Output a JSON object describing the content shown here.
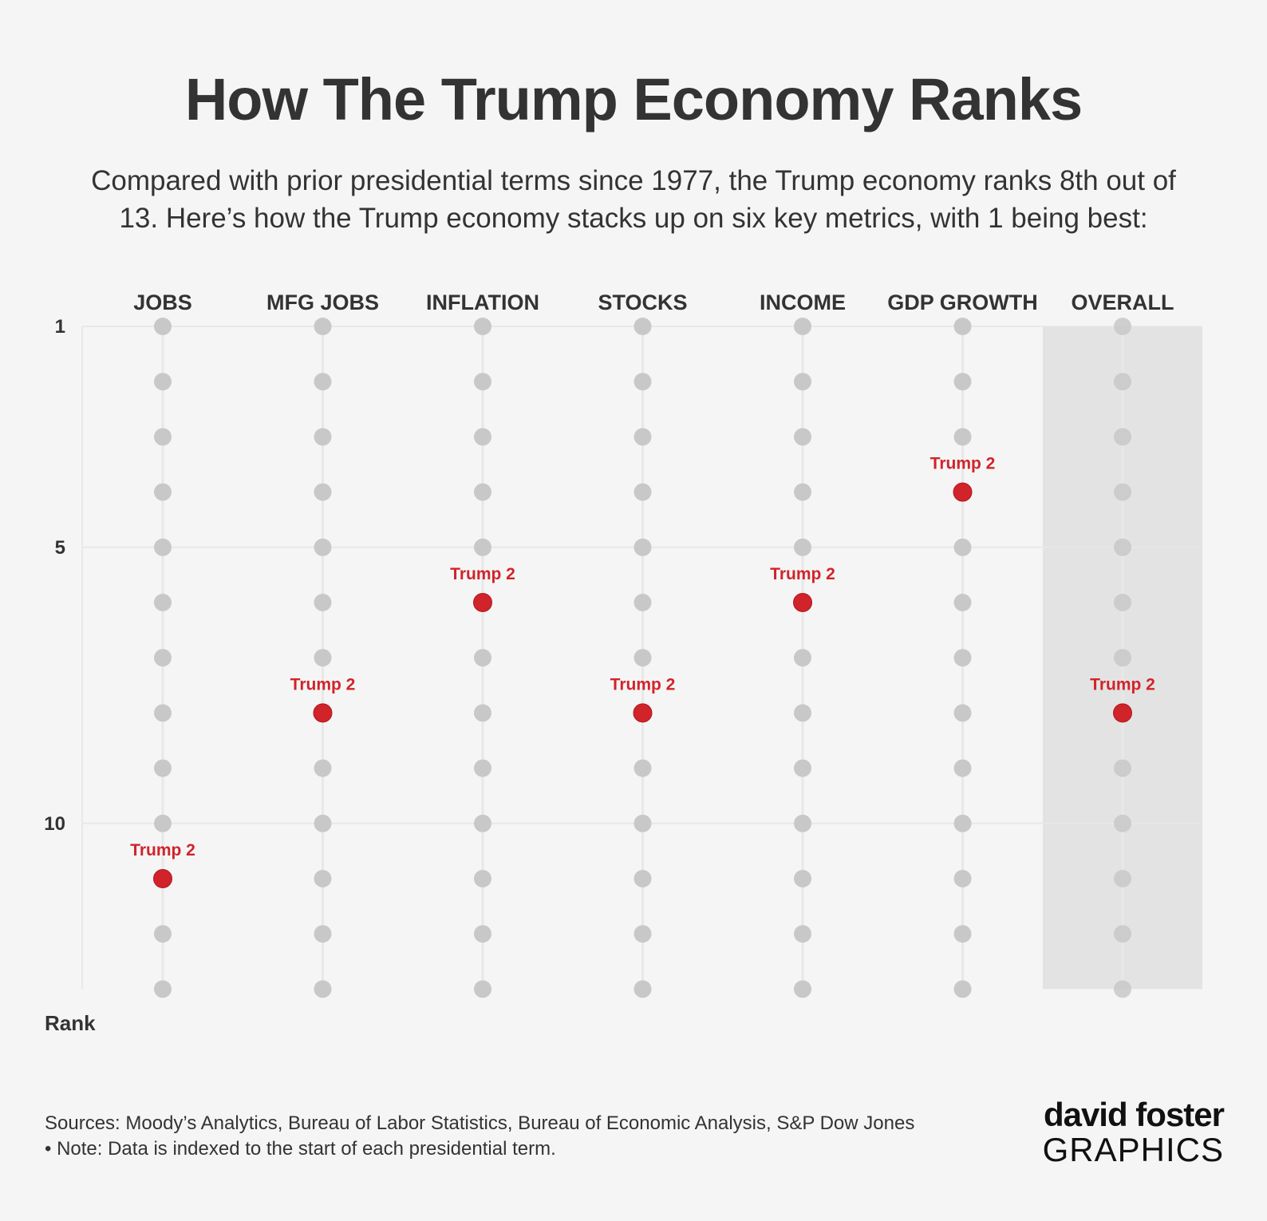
{
  "title": "How The Trump Economy Ranks",
  "subtitle_line1": "Compared with prior presidential terms since 1977, the Trump economy ranks 8th out of",
  "subtitle_line2": "13. Here’s how the Trump economy stacks up on six key metrics, with 1 being best:",
  "footer": {
    "sources": "Sources: Moody’s Analytics, Bureau of Labor Statistics, Bureau of Economic Analysis, S&P Dow Jones",
    "note": "• Note: Data is indexed to the start of each presidential term."
  },
  "logo": {
    "top": "david foster",
    "bottom": "GRAPHICS"
  },
  "colors": {
    "highlight": "#d1232a",
    "dot": "#c8c8c8",
    "overall_band": "#e3e3e3",
    "grid": "#e8e8e8",
    "logo_accent": "#1fa3dc"
  },
  "chart_data": {
    "type": "scatter",
    "categories": [
      "JOBS",
      "MFG JOBS",
      "INFLATION",
      "STOCKS",
      "INCOME",
      "GDP GROWTH",
      "OVERALL"
    ],
    "ranks_per_category": 13,
    "ylabel": "Rank",
    "yticks": [
      1,
      5,
      10
    ],
    "ylim": [
      1,
      13
    ],
    "y_inverted": true,
    "highlighted_band": "OVERALL",
    "series": [
      {
        "name": "Trump 2",
        "values": [
          11,
          8,
          6,
          8,
          6,
          4,
          8
        ]
      }
    ]
  }
}
